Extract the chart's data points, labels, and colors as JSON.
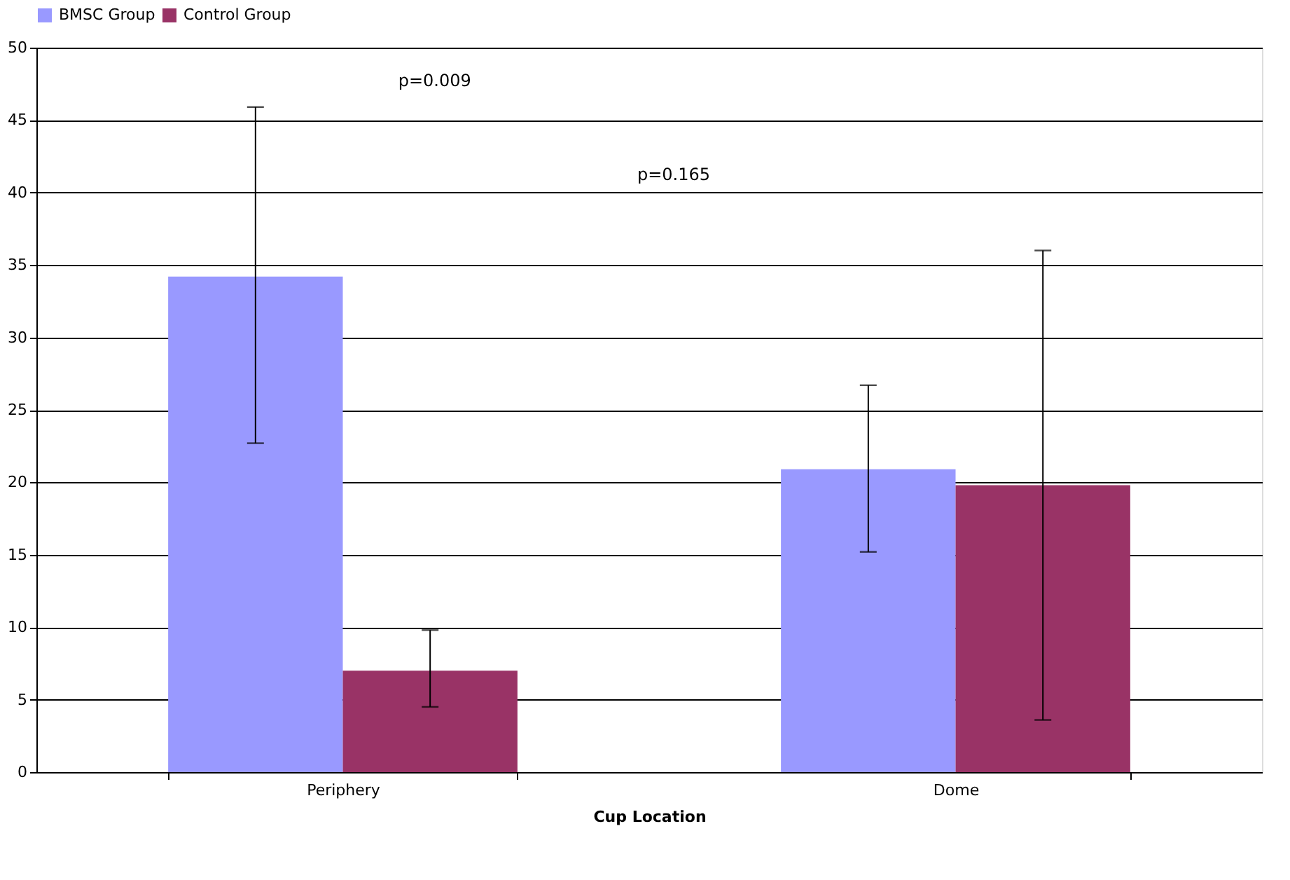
{
  "chart_data": {
    "type": "bar",
    "xlabel": "Cup Location",
    "categories": [
      "Periphery",
      "Dome"
    ],
    "series": [
      {
        "name": "BMSC Group",
        "color": "#9999ff",
        "values": [
          34.2,
          20.9
        ],
        "errors": [
          [
            22.7,
            45.9
          ],
          [
            15.2,
            26.7
          ]
        ]
      },
      {
        "name": "Control Group",
        "color": "#993366",
        "values": [
          7.0,
          19.8
        ],
        "errors": [
          [
            4.5,
            9.8
          ],
          [
            3.6,
            36.0
          ]
        ]
      }
    ],
    "ylim": [
      0,
      50
    ],
    "yticks": [
      0,
      5,
      10,
      15,
      20,
      25,
      30,
      35,
      40,
      45,
      50
    ],
    "grid": "y",
    "legend": "top",
    "annotations": [
      "p=0.009",
      "p=0.165"
    ]
  }
}
